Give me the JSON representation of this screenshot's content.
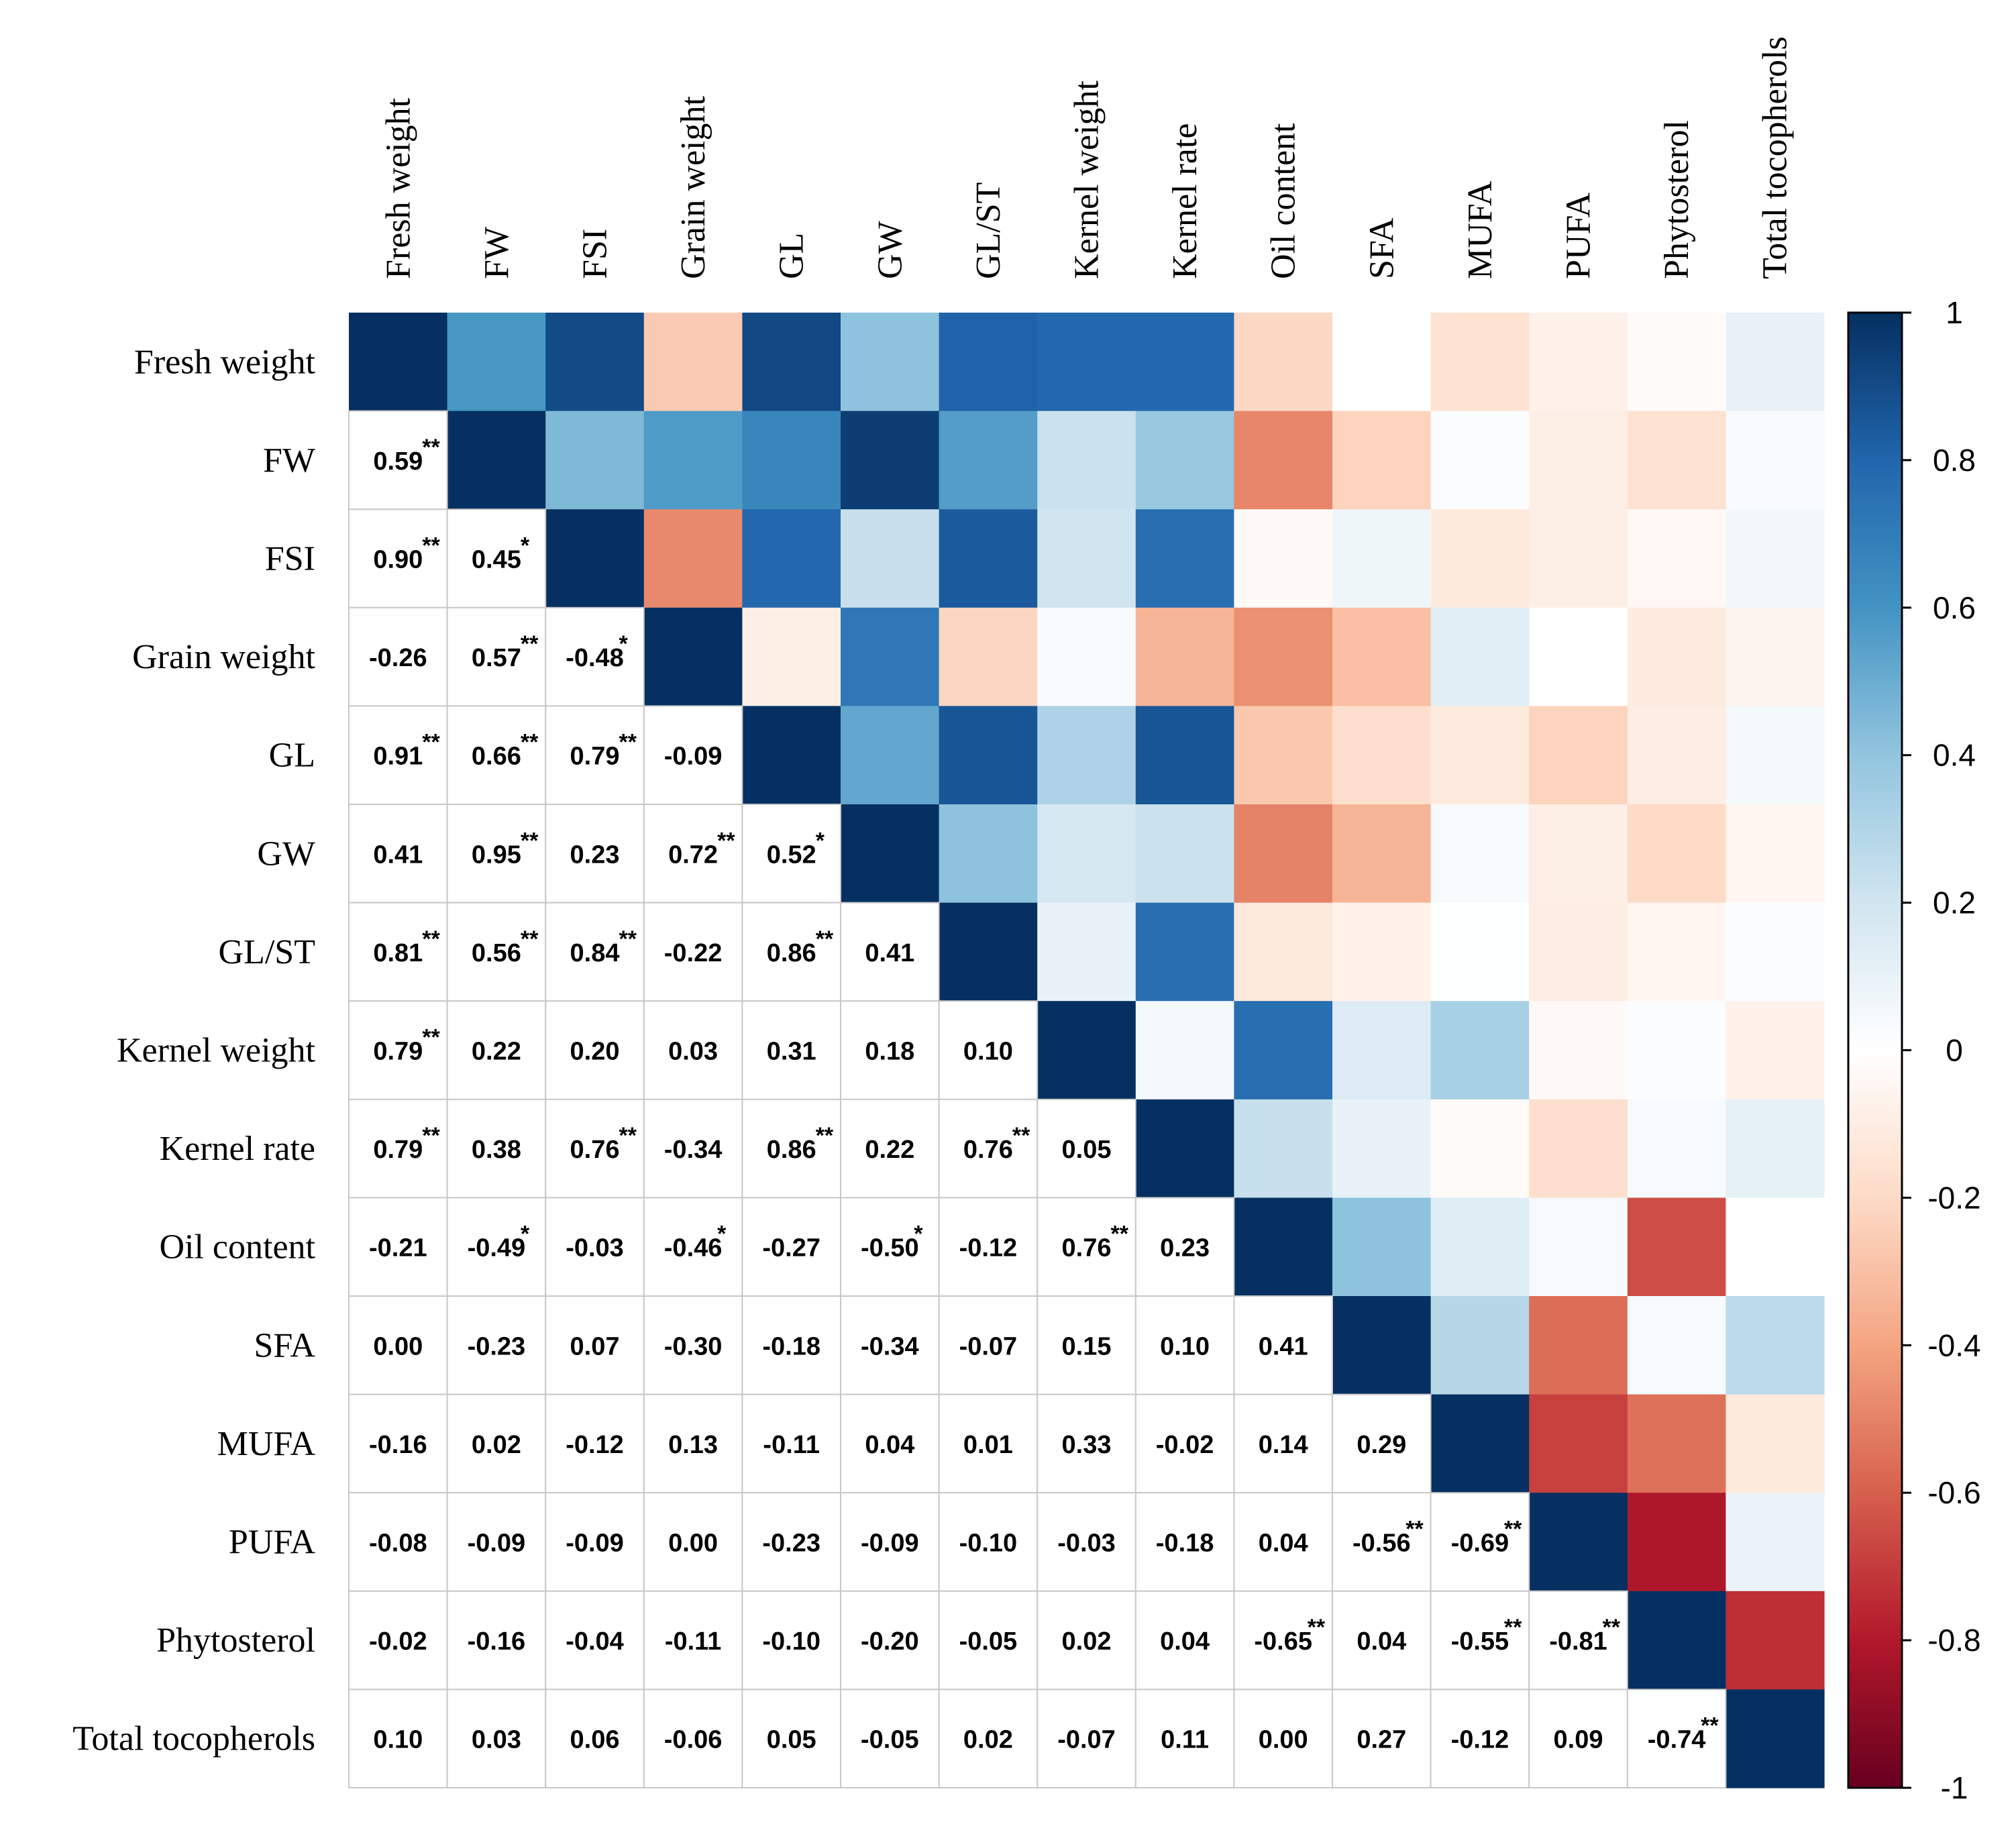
{
  "chart_data": {
    "type": "heatmap",
    "title": "",
    "variables": [
      "Fresh weight",
      "FW",
      "FSI",
      "Grain weight",
      "GL",
      "GW",
      "GL/ST",
      "Kernel weight",
      "Kernel rate",
      "Oil content",
      "SFA",
      "MUFA",
      "PUFA",
      "Phytosterol",
      "Total tocopherols"
    ],
    "lower_triangle": [
      [],
      [
        "0.59"
      ],
      [
        "0.90",
        "0.45"
      ],
      [
        "-0.26",
        "0.57",
        "-0.48"
      ],
      [
        "0.91",
        "0.66",
        "0.79",
        "-0.09"
      ],
      [
        "0.41",
        "0.95",
        "0.23",
        "0.72",
        "0.52"
      ],
      [
        "0.81",
        "0.56",
        "0.84",
        "-0.22",
        "0.86",
        "0.41"
      ],
      [
        "0.79",
        "0.22",
        "0.20",
        "0.03",
        "0.31",
        "0.18",
        "0.10"
      ],
      [
        "0.79",
        "0.38",
        "0.76",
        "-0.34",
        "0.86",
        "0.22",
        "0.76",
        "0.05"
      ],
      [
        "-0.21",
        "-0.49",
        "-0.03",
        "-0.46",
        "-0.27",
        "-0.50",
        "-0.12",
        "0.76",
        "0.23"
      ],
      [
        "0.00",
        "-0.23",
        "0.07",
        "-0.30",
        "-0.18",
        "-0.34",
        "-0.07",
        "0.15",
        "0.10",
        "0.41"
      ],
      [
        "-0.16",
        "0.02",
        "-0.12",
        "0.13",
        "-0.11",
        "0.04",
        "0.01",
        "0.33",
        "-0.02",
        "0.14",
        "0.29"
      ],
      [
        "-0.08",
        "-0.09",
        "-0.09",
        "0.00",
        "-0.23",
        "-0.09",
        "-0.10",
        "-0.03",
        "-0.18",
        "0.04",
        "-0.56",
        "-0.69"
      ],
      [
        "-0.02",
        "-0.16",
        "-0.04",
        "-0.11",
        "-0.10",
        "-0.20",
        "-0.05",
        "0.02",
        "0.04",
        "-0.65",
        "0.04",
        "-0.55",
        "-0.81"
      ],
      [
        "0.10",
        "0.03",
        "0.06",
        "-0.06",
        "0.05",
        "-0.05",
        "0.02",
        "-0.07",
        "0.11",
        "0.00",
        "0.27",
        "-0.12",
        "0.09",
        "-0.74"
      ]
    ],
    "significance": [
      [],
      [
        "**"
      ],
      [
        "**",
        "*"
      ],
      [
        "",
        "**",
        "*"
      ],
      [
        "**",
        "**",
        "**",
        ""
      ],
      [
        "",
        "**",
        "",
        "**",
        "*"
      ],
      [
        "**",
        "**",
        "**",
        "",
        "**",
        ""
      ],
      [
        "**",
        "",
        "",
        "",
        "",
        "",
        ""
      ],
      [
        "**",
        "",
        "**",
        "",
        "**",
        "",
        "**",
        ""
      ],
      [
        "",
        "*",
        "",
        "*",
        "",
        "*",
        "",
        "**",
        ""
      ],
      [
        "",
        "",
        "",
        "",
        "",
        "",
        "",
        "",
        "",
        ""
      ],
      [
        "",
        "",
        "",
        "",
        "",
        "",
        "",
        "",
        "",
        "",
        ""
      ],
      [
        "",
        "",
        "",
        "",
        "",
        "",
        "",
        "",
        "",
        "",
        "**",
        "**"
      ],
      [
        "",
        "",
        "",
        "",
        "",
        "",
        "",
        "",
        "",
        "**",
        "",
        "**",
        "**"
      ],
      [
        "",
        "",
        "",
        "",
        "",
        "",
        "",
        "",
        "",
        "",
        "",
        "",
        "",
        "**"
      ]
    ],
    "upper_triangle_colors": [
      [
        1.0,
        0.59,
        0.9,
        -0.26,
        0.91,
        0.41,
        0.81,
        0.79,
        0.79,
        -0.21,
        0.0,
        -0.16,
        -0.08,
        -0.02,
        0.1
      ],
      [
        0.59,
        1.0,
        0.45,
        0.57,
        0.66,
        0.95,
        0.56,
        0.22,
        0.38,
        -0.49,
        -0.23,
        0.02,
        -0.09,
        -0.16,
        0.03
      ],
      [
        0.9,
        0.45,
        1.0,
        -0.48,
        0.79,
        0.23,
        0.84,
        0.2,
        0.76,
        -0.03,
        0.07,
        -0.12,
        -0.09,
        -0.04,
        0.06
      ],
      [
        -0.26,
        0.57,
        -0.48,
        1.0,
        -0.09,
        0.72,
        -0.22,
        0.03,
        -0.34,
        -0.46,
        -0.3,
        0.13,
        0.0,
        -0.11,
        -0.06
      ],
      [
        0.91,
        0.66,
        0.79,
        -0.09,
        1.0,
        0.52,
        0.86,
        0.31,
        0.86,
        -0.27,
        -0.18,
        -0.11,
        -0.23,
        -0.1,
        0.05
      ],
      [
        0.41,
        0.95,
        0.23,
        0.72,
        0.52,
        1.0,
        0.41,
        0.18,
        0.22,
        -0.5,
        -0.34,
        0.04,
        -0.09,
        -0.2,
        -0.05
      ],
      [
        0.81,
        0.56,
        0.84,
        -0.22,
        0.86,
        0.41,
        1.0,
        0.1,
        0.76,
        -0.12,
        -0.07,
        0.01,
        -0.1,
        -0.05,
        0.02
      ],
      [
        0.79,
        0.22,
        0.2,
        0.03,
        0.31,
        0.18,
        0.1,
        1.0,
        0.05,
        0.76,
        0.15,
        0.33,
        -0.03,
        0.02,
        -0.07
      ],
      [
        0.79,
        0.38,
        0.76,
        -0.34,
        0.86,
        0.22,
        0.76,
        0.05,
        1.0,
        0.23,
        0.1,
        -0.02,
        -0.18,
        0.04,
        0.11
      ],
      [
        -0.21,
        -0.49,
        -0.03,
        -0.46,
        -0.27,
        -0.5,
        -0.12,
        0.76,
        0.23,
        1.0,
        0.41,
        0.14,
        0.04,
        -0.65,
        0.0
      ],
      [
        0.0,
        -0.23,
        0.07,
        -0.3,
        -0.18,
        -0.34,
        -0.07,
        0.15,
        0.1,
        0.41,
        1.0,
        0.29,
        -0.56,
        0.04,
        0.27
      ],
      [
        -0.16,
        0.02,
        -0.12,
        0.13,
        -0.11,
        0.04,
        0.01,
        0.33,
        -0.02,
        0.14,
        0.29,
        1.0,
        -0.69,
        -0.55,
        -0.12
      ],
      [
        -0.08,
        -0.09,
        -0.09,
        0.0,
        -0.23,
        -0.09,
        -0.1,
        -0.03,
        -0.18,
        0.04,
        -0.56,
        -0.69,
        1.0,
        -0.81,
        0.09
      ],
      [
        -0.02,
        -0.16,
        -0.04,
        -0.11,
        -0.1,
        -0.2,
        -0.05,
        0.02,
        0.04,
        -0.65,
        0.04,
        -0.55,
        -0.81,
        1.0,
        -0.74
      ],
      [
        0.1,
        0.03,
        0.06,
        -0.06,
        0.05,
        -0.05,
        0.02,
        -0.07,
        0.11,
        0.0,
        0.27,
        -0.12,
        0.09,
        -0.74,
        1.0
      ]
    ],
    "color_scale": {
      "range": [
        -1,
        1
      ],
      "ticks": [
        "1",
        "0.8",
        "0.6",
        "0.4",
        "0.2",
        "0",
        "-0.2",
        "-0.4",
        "-0.6",
        "-0.8",
        "-1"
      ],
      "colors": {
        "-1": "#67001f",
        "-0.8": "#b2182b",
        "-0.6": "#d6604d",
        "-0.4": "#f4a582",
        "-0.2": "#fddbc7",
        "0": "#ffffff",
        "0.2": "#d1e5f0",
        "0.4": "#92c5de",
        "0.6": "#4393c3",
        "0.8": "#2166ac",
        "1": "#053061"
      }
    },
    "grid": true,
    "legend": "right"
  }
}
